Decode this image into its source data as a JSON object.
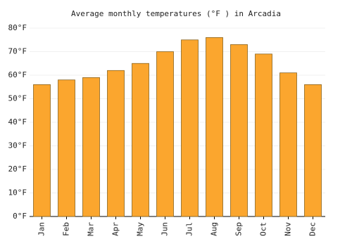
{
  "chart_data": {
    "type": "bar",
    "title": "Average monthly temperatures (°F ) in Arcadia",
    "categories": [
      "Jan",
      "Feb",
      "Mar",
      "Apr",
      "May",
      "Jun",
      "Jul",
      "Aug",
      "Sep",
      "Oct",
      "Nov",
      "Dec"
    ],
    "values": [
      56,
      58,
      59,
      62,
      65,
      70,
      75,
      76,
      73,
      69,
      61,
      56
    ],
    "color": "#fba62e",
    "ylim": [
      0,
      80
    ],
    "yticks": [
      {
        "value": 0,
        "label": "0°F"
      },
      {
        "value": 10,
        "label": "10°F"
      },
      {
        "value": 20,
        "label": "20°F"
      },
      {
        "value": 30,
        "label": "30°F"
      },
      {
        "value": 40,
        "label": "40°F"
      },
      {
        "value": 50,
        "label": "50°F"
      },
      {
        "value": 60,
        "label": "60°F"
      },
      {
        "value": 70,
        "label": "70°F"
      },
      {
        "value": 80,
        "label": "80°F"
      }
    ],
    "grid": true
  }
}
